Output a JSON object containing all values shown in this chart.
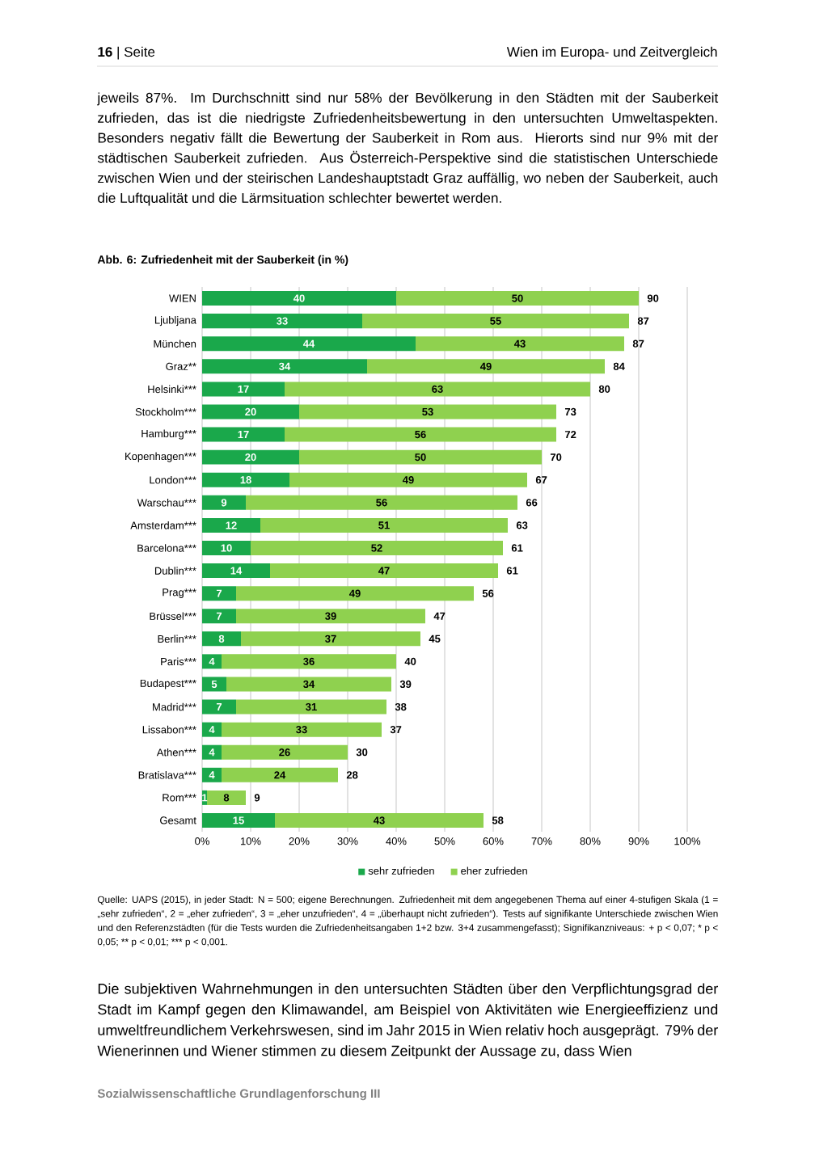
{
  "chart_data": {
    "type": "bar",
    "orientation": "horizontal",
    "stacked": true,
    "title": "Abb. 6: Zufriedenheit mit der Sauberkeit (in %)",
    "categories": [
      "WIEN",
      "Ljubljana",
      "München",
      "Graz**",
      "Helsinki***",
      "Stockholm***",
      "Hamburg***",
      "Kopenhagen***",
      "London***",
      "Warschau***",
      "Amsterdam***",
      "Barcelona***",
      "Dublin***",
      "Prag***",
      "Brüssel***",
      "Berlin***",
      "Paris***",
      "Budapest***",
      "Madrid***",
      "Lissabon***",
      "Athen***",
      "Bratislava***",
      "Rom***",
      "Gesamt"
    ],
    "series": [
      {
        "name": "sehr zufrieden",
        "color": "#1aa84b",
        "values": [
          40,
          33,
          44,
          34,
          17,
          20,
          17,
          20,
          18,
          9,
          12,
          10,
          14,
          7,
          7,
          8,
          4,
          5,
          7,
          4,
          4,
          4,
          1,
          15
        ]
      },
      {
        "name": "eher zufrieden",
        "color": "#8fd14f",
        "values": [
          50,
          55,
          43,
          49,
          63,
          53,
          56,
          50,
          49,
          56,
          51,
          52,
          47,
          49,
          39,
          37,
          36,
          34,
          31,
          33,
          26,
          24,
          8,
          43
        ]
      }
    ],
    "totals": [
      "90",
      "87",
      "87",
      "84",
      "80",
      "73",
      "72",
      "70",
      "67",
      "66",
      "63",
      "61",
      "61",
      "56",
      "47",
      "45",
      "40",
      "39",
      "38",
      "37",
      "30",
      "28",
      "9",
      "58"
    ],
    "data_labels": true,
    "xlim": [
      0,
      100
    ],
    "xticks": [
      {
        "value": 0,
        "label": "0%"
      },
      {
        "value": 10,
        "label": "10%"
      },
      {
        "value": 20,
        "label": "20%"
      },
      {
        "value": 30,
        "label": "30%"
      },
      {
        "value": 40,
        "label": "40%"
      },
      {
        "value": 50,
        "label": "50%"
      },
      {
        "value": 60,
        "label": "60%"
      },
      {
        "value": 70,
        "label": "70%"
      },
      {
        "value": 80,
        "label": "80%"
      },
      {
        "value": 90,
        "label": "90%"
      },
      {
        "value": 100,
        "label": "100%"
      }
    ],
    "grid": "x",
    "legend": "bottom",
    "annotations": [
      "**16** | Seite",
      "Wien im Europa- und Zeitvergleich",
      "jeweils 87%. Im Durchschnitt sind nur 58% der Bevölkerung in den Städten mit der Sauberkeit zufrieden, das ist die niedrigste Zufriedenheitsbewertung in den untersuchten Umweltaspekten. Besonders negativ fällt die Bewertung der Sauberkeit in Rom aus. Hierorts sind nur 9% mit der städtischen Sauberkeit zufrieden. Aus Österreich-Perspektive sind die statistischen Unterschiede zwischen Wien und der steirischen Landeshauptstadt Graz auffällig, wo neben der Sauberkeit, auch die Luftqualität und die Lärmsituation schlechter bewertet werden.",
      "Quelle: UAPS (2015), in jeder Stadt: N = 500; eigene Berechnungen. Zufriedenheit mit dem angegebenen Thema auf einer 4-stufigen Skala (1 = „sehr zufrieden“, 2 = „eher zufrieden“, 3 = „eher unzufrieden“, 4 = „überhaupt nicht zufrieden“). Tests auf signifikante Unterschiede zwischen Wien und den Referenzstädten (für die Tests wurden die Zufriedenheitsangaben 1+2 bzw. 3+4 zusammengefasst); Signifikanzniveaus: + p < 0,07; * p < 0,05; ** p < 0,01; *** p < 0,001.",
      "Die subjektiven Wahrnehmungen in den untersuchten Städten über den Verpflichtungsgrad der Stadt im Kampf gegen den Klimawandel, am Beispiel von Aktivitäten wie Energieeffizienz und umweltfreundlichem Verkehrswesen, sind im Jahr 2015 in Wien relativ hoch ausgeprägt. 79% der Wienerinnen und Wiener stimmen zu diesem Zeitpunkt der Aussage zu, dass Wien",
      "Sozialwissenschaftliche Grundlagenforschung III"
    ]
  }
}
